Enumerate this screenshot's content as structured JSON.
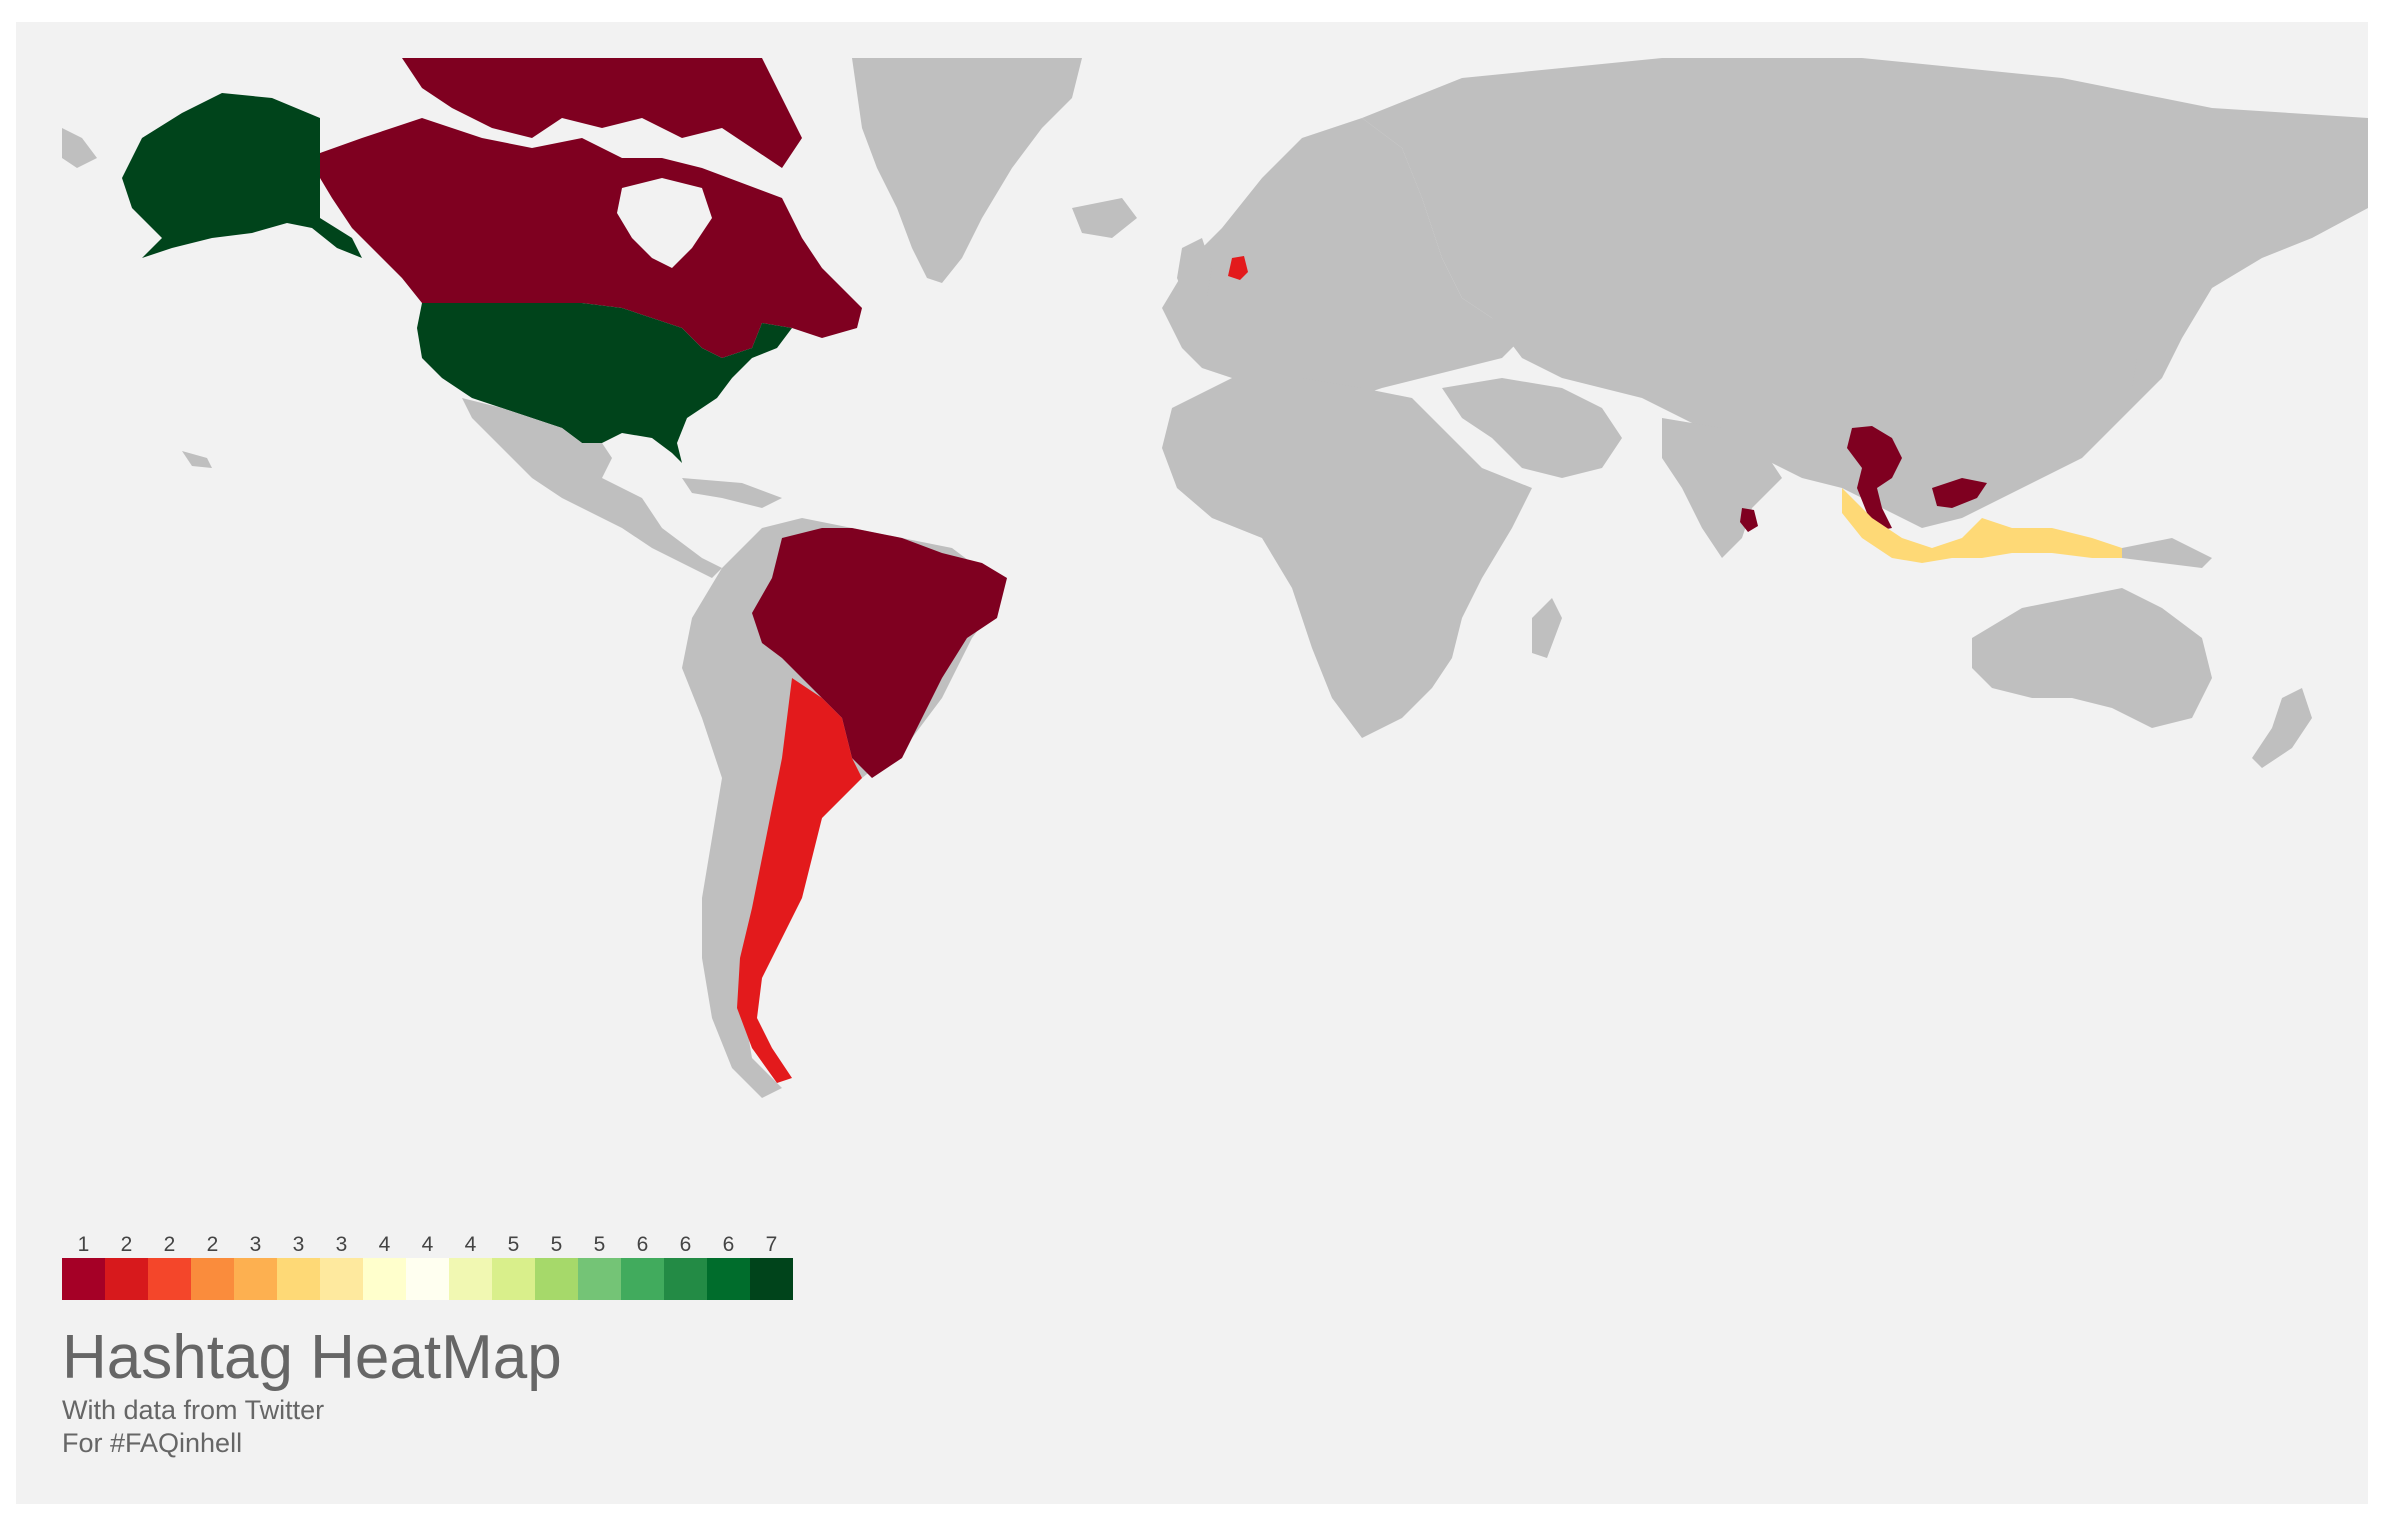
{
  "map": {
    "land_color": "#bfbfbf",
    "ocean_color": "#f2f2f2",
    "regions": [
      {
        "name": "Alaska",
        "value": 7,
        "color": "#00441b"
      },
      {
        "name": "United States",
        "value": 7,
        "color": "#00441b"
      },
      {
        "name": "Canada",
        "value": 1,
        "color": "#7f0020"
      },
      {
        "name": "Brazil",
        "value": 1,
        "color": "#7f0020"
      },
      {
        "name": "Argentina",
        "value": 2,
        "color": "#e31a1c"
      },
      {
        "name": "Netherlands",
        "value": 2,
        "color": "#e31a1c"
      },
      {
        "name": "Thailand",
        "value": 1,
        "color": "#7f0020"
      },
      {
        "name": "Sri Lanka",
        "value": 1,
        "color": "#7f0020"
      },
      {
        "name": "Malaysia",
        "value": 1,
        "color": "#7f0020"
      },
      {
        "name": "Indonesia",
        "value": 3,
        "color": "#fed976"
      }
    ]
  },
  "legend": {
    "labels": [
      "1",
      "2",
      "2",
      "2",
      "3",
      "3",
      "3",
      "4",
      "4",
      "4",
      "5",
      "5",
      "5",
      "6",
      "6",
      "6",
      "7"
    ],
    "colors": [
      "#a50026",
      "#d7191c",
      "#f4462a",
      "#fa8c3c",
      "#fdb050",
      "#fed976",
      "#fee99e",
      "#ffffcc",
      "#fffff0",
      "#f1f8b2",
      "#d9ef8b",
      "#a6d96a",
      "#74c476",
      "#41ab5d",
      "#238b45",
      "#006d2c",
      "#00441b"
    ]
  },
  "title": "Hashtag HeatMap",
  "subtitle_1": "With data from Twitter",
  "subtitle_2": "For #FAQinhell"
}
